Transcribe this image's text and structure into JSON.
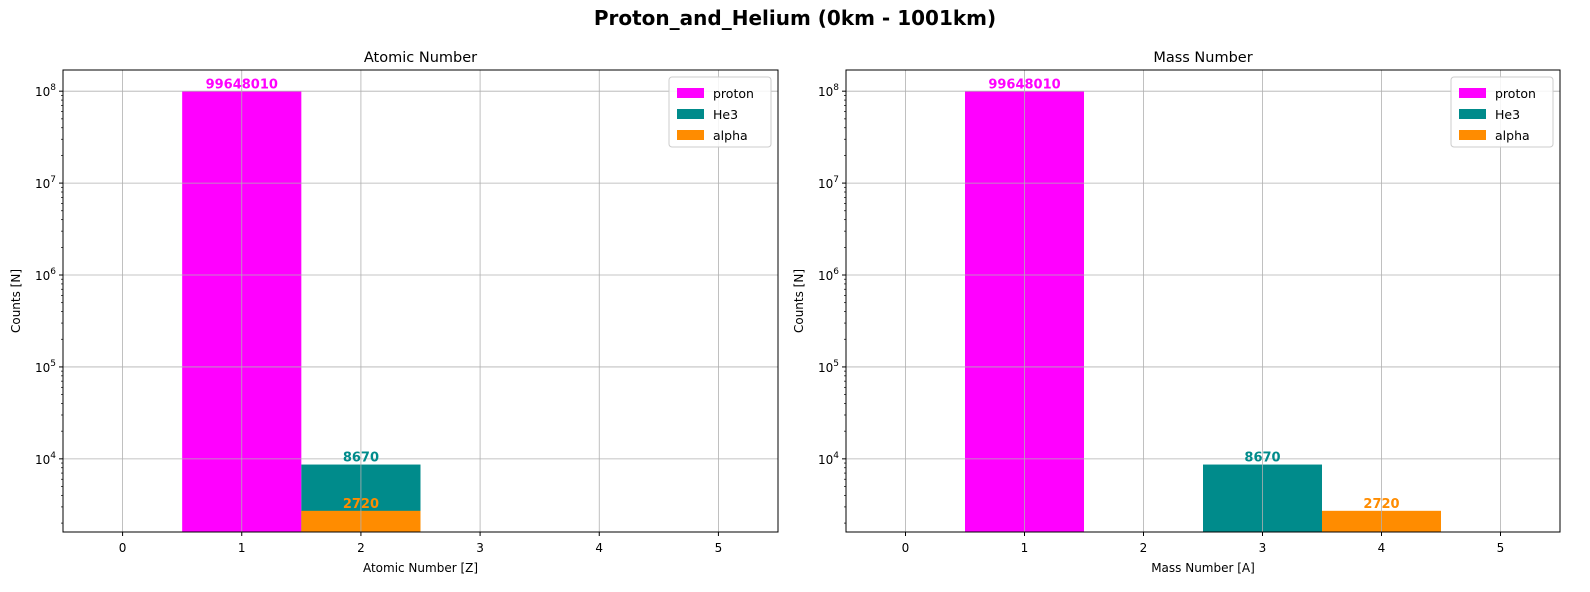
{
  "suptitle": "Proton_and_Helium (0km - 1001km)",
  "colors": {
    "proton": "#ff00ff",
    "He3": "#008b8b",
    "alpha": "#ff8c00",
    "grid": "#b0b0b0",
    "axis": "#000000"
  },
  "chart_data": [
    {
      "type": "bar",
      "title": "Atomic Number",
      "xlabel": "Atomic Number [Z]",
      "ylabel": "Counts [N]",
      "yscale": "log",
      "xlim": [
        -0.5,
        5.5
      ],
      "ylim": [
        1600,
        170000000
      ],
      "xticks": [
        "0",
        "1",
        "2",
        "3",
        "4",
        "5"
      ],
      "yticks": [
        {
          "value": 10000,
          "base": "10",
          "exp": "4"
        },
        {
          "value": 100000,
          "base": "10",
          "exp": "5"
        },
        {
          "value": 1000000,
          "base": "10",
          "exp": "6"
        },
        {
          "value": 10000000,
          "base": "10",
          "exp": "7"
        },
        {
          "value": 100000000,
          "base": "10",
          "exp": "8"
        }
      ],
      "grid": true,
      "legend_position": "top-right",
      "series": [
        {
          "name": "proton",
          "x": 1,
          "value": 99648010,
          "label": "99648010",
          "color": "#ff00ff"
        },
        {
          "name": "He3",
          "x": 2,
          "value": 8670,
          "label": "8670",
          "color": "#008b8b"
        },
        {
          "name": "alpha",
          "x": 2,
          "value": 2720,
          "label": "2720",
          "color": "#ff8c00"
        }
      ]
    },
    {
      "type": "bar",
      "title": "Mass Number",
      "xlabel": "Mass Number [A]",
      "ylabel": "Counts [N]",
      "yscale": "log",
      "xlim": [
        -0.5,
        5.5
      ],
      "ylim": [
        1600,
        170000000
      ],
      "xticks": [
        "0",
        "1",
        "2",
        "3",
        "4",
        "5"
      ],
      "yticks": [
        {
          "value": 10000,
          "base": "10",
          "exp": "4"
        },
        {
          "value": 100000,
          "base": "10",
          "exp": "5"
        },
        {
          "value": 1000000,
          "base": "10",
          "exp": "6"
        },
        {
          "value": 10000000,
          "base": "10",
          "exp": "7"
        },
        {
          "value": 100000000,
          "base": "10",
          "exp": "8"
        }
      ],
      "grid": true,
      "legend_position": "top-right",
      "series": [
        {
          "name": "proton",
          "x": 1,
          "value": 99648010,
          "label": "99648010",
          "color": "#ff00ff"
        },
        {
          "name": "He3",
          "x": 3,
          "value": 8670,
          "label": "8670",
          "color": "#008b8b"
        },
        {
          "name": "alpha",
          "x": 4,
          "value": 2720,
          "label": "2720",
          "color": "#ff8c00"
        }
      ]
    }
  ]
}
